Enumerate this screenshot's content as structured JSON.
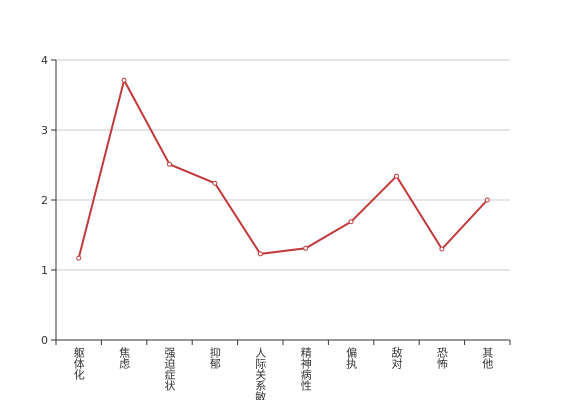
{
  "chart_data": {
    "type": "line",
    "categories": [
      "躯体化",
      "焦虑",
      "强迫症状",
      "抑郁",
      "人际关系敏感",
      "精神病性",
      "偏执",
      "敌对",
      "恐怖",
      "其他"
    ],
    "series": [
      {
        "color": "#c0393b",
        "values": [
          1.17,
          3.71,
          2.51,
          2.24,
          1.23,
          1.31,
          1.69,
          2.34,
          1.3,
          2.0
        ]
      }
    ],
    "ylim": [
      0,
      4
    ],
    "yticks": [
      0,
      1,
      2,
      3,
      4
    ],
    "grid": true
  }
}
